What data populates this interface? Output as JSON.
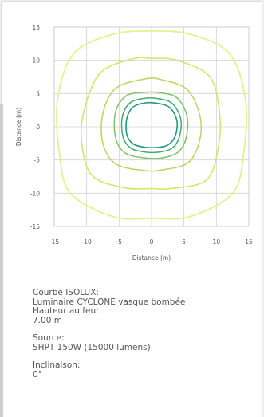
{
  "chart_data": {
    "type": "contour",
    "xlabel": "Distance (m)",
    "ylabel": "Distance (m)",
    "xlim": [
      -15,
      15
    ],
    "ylim": [
      -15,
      15
    ],
    "x_ticks": [
      -15,
      -10,
      -5,
      0,
      5,
      10,
      15
    ],
    "y_ticks": [
      15,
      10,
      5,
      0,
      -5,
      -10,
      -15
    ],
    "grid": true,
    "contours": [
      {
        "color": "#e9ef8e",
        "width": 1.8,
        "points": [
          [
            -14.5,
            4
          ],
          [
            -12,
            11
          ],
          [
            -6,
            13.9
          ],
          [
            0,
            14.4
          ],
          [
            6,
            13.9
          ],
          [
            12,
            11
          ],
          [
            14.5,
            4
          ],
          [
            14.2,
            -4
          ],
          [
            12.5,
            -10
          ],
          [
            6,
            -13.5
          ],
          [
            0,
            -13.8
          ],
          [
            -6,
            -13.5
          ],
          [
            -12.5,
            -10
          ],
          [
            -14.2,
            -4
          ]
        ]
      },
      {
        "color": "#d6e56a",
        "width": 1.6,
        "points": [
          [
            -10.5,
            2
          ],
          [
            -8,
            8
          ],
          [
            -3,
            10.2
          ],
          [
            0,
            10.3
          ],
          [
            4,
            10
          ],
          [
            9,
            7.5
          ],
          [
            10.5,
            2
          ],
          [
            10.3,
            -3
          ],
          [
            8.5,
            -8
          ],
          [
            3,
            -9.3
          ],
          [
            0,
            -9.3
          ],
          [
            -4,
            -9.2
          ],
          [
            -9,
            -7.5
          ],
          [
            -10.7,
            -3
          ]
        ]
      },
      {
        "color": "#b8d65a",
        "width": 1.5,
        "points": [
          [
            -7.5,
            2
          ],
          [
            -5.5,
            5.8
          ],
          [
            -1,
            7.2
          ],
          [
            1.5,
            7.1
          ],
          [
            5.5,
            5.6
          ],
          [
            7.5,
            1.5
          ],
          [
            7.3,
            -2.5
          ],
          [
            5.5,
            -5.5
          ],
          [
            1.5,
            -6.5
          ],
          [
            -1,
            -6.6
          ],
          [
            -5.5,
            -5.6
          ],
          [
            -7.5,
            -2.5
          ]
        ]
      },
      {
        "color": "#7cc46a",
        "width": 1.5,
        "points": [
          [
            -5.6,
            2
          ],
          [
            -4,
            4.6
          ],
          [
            -1,
            5.2
          ],
          [
            1.5,
            5.1
          ],
          [
            4,
            4.3
          ],
          [
            5.5,
            1.5
          ],
          [
            5.3,
            -1.8
          ],
          [
            4,
            -3.9
          ],
          [
            1.5,
            -4.7
          ],
          [
            -1,
            -4.7
          ],
          [
            -4,
            -4
          ],
          [
            -5.5,
            -1.8
          ]
        ]
      },
      {
        "color": "#3fae6a",
        "width": 1.5,
        "points": [
          [
            -4.5,
            1.5
          ],
          [
            -3.3,
            3.6
          ],
          [
            -1,
            4.3
          ],
          [
            1.2,
            4.2
          ],
          [
            3.2,
            3.5
          ],
          [
            4.5,
            1.2
          ],
          [
            4.3,
            -1.5
          ],
          [
            3.2,
            -3.2
          ],
          [
            1.2,
            -3.8
          ],
          [
            -1,
            -3.8
          ],
          [
            -3.2,
            -3.2
          ],
          [
            -4.4,
            -1.5
          ]
        ]
      },
      {
        "color": "#1f9a7e",
        "width": 1.6,
        "points": [
          [
            -3.8,
            1.3
          ],
          [
            -2.8,
            3
          ],
          [
            -0.9,
            3.6
          ],
          [
            1,
            3.5
          ],
          [
            2.8,
            2.9
          ],
          [
            3.9,
            1
          ],
          [
            3.7,
            -1.3
          ],
          [
            2.6,
            -2.7
          ],
          [
            1,
            -3.1
          ],
          [
            -0.9,
            -3.1
          ],
          [
            -2.8,
            -2.6
          ],
          [
            -3.8,
            -1.2
          ]
        ]
      }
    ]
  },
  "info": {
    "blocks": [
      [
        "Courbe ISOLUX:",
        "Luminaire CYCLONE vasque bombée",
        "Hauteur au feu:",
        "7.00 m"
      ],
      [
        "Source:",
        "SHPT 150W (15000 lumens)"
      ],
      [
        "Inclinaison:",
        "0°"
      ]
    ]
  }
}
